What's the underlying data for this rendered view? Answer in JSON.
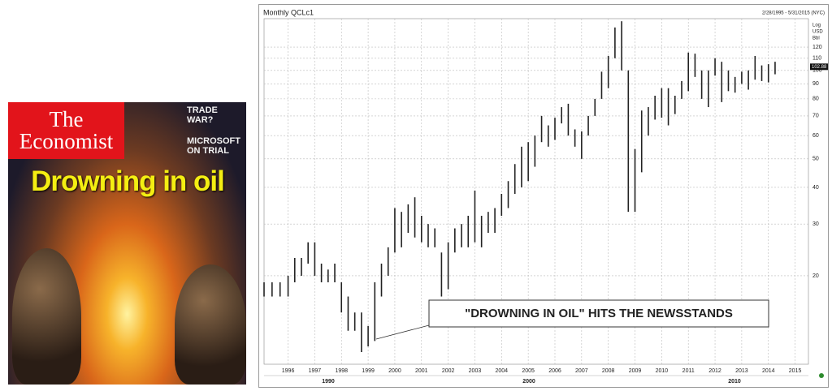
{
  "cover": {
    "masthead": [
      "The",
      "Economist"
    ],
    "side_text": [
      "TRADE WAR?",
      "MICROSOFT ON TRIAL"
    ],
    "headline": "Drowning in oil"
  },
  "chart_data": {
    "type": "range",
    "title": "Monthly QCLc1",
    "subtitle": "2/28/1995 - 5/31/2015 (NYC)",
    "y_axis_label": [
      "Log",
      "USD",
      "Bbl"
    ],
    "annotation": "\"DROWNING IN OIL\" HITS THE NEWSSTANDS",
    "era_labels": [
      "1990",
      "2000",
      "2010"
    ],
    "last_value": 102.88,
    "log_y": true,
    "grid": true,
    "color": "#222222",
    "xlim": [
      1995.1,
      2015.5
    ],
    "xticks": [
      1996,
      1997,
      1998,
      1999,
      2000,
      2001,
      2002,
      2003,
      2004,
      2005,
      2006,
      2007,
      2008,
      2009,
      2010,
      2011,
      2012,
      2013,
      2014,
      2015
    ],
    "ylim": [
      10,
      150
    ],
    "yticks": [
      20,
      30,
      40,
      50,
      60,
      70,
      80,
      90,
      100,
      110,
      120
    ],
    "x": [
      1995.1,
      1995.4,
      1995.7,
      1996.0,
      1996.25,
      1996.5,
      1996.75,
      1997.0,
      1997.25,
      1997.5,
      1997.75,
      1998.0,
      1998.25,
      1998.5,
      1998.75,
      1999.0,
      1999.25,
      1999.5,
      1999.75,
      2000.0,
      2000.25,
      2000.5,
      2000.75,
      2001.0,
      2001.25,
      2001.5,
      2001.75,
      2002.0,
      2002.25,
      2002.5,
      2002.75,
      2003.0,
      2003.25,
      2003.5,
      2003.75,
      2004.0,
      2004.25,
      2004.5,
      2004.75,
      2005.0,
      2005.25,
      2005.5,
      2005.75,
      2006.0,
      2006.25,
      2006.5,
      2006.75,
      2007.0,
      2007.25,
      2007.5,
      2007.75,
      2008.0,
      2008.25,
      2008.5,
      2008.75,
      2009.0,
      2009.25,
      2009.5,
      2009.75,
      2010.0,
      2010.25,
      2010.5,
      2010.75,
      2011.0,
      2011.25,
      2011.5,
      2011.75,
      2012.0,
      2012.25,
      2012.5,
      2012.75,
      2013.0,
      2013.25,
      2013.5,
      2013.75,
      2014.0,
      2014.25
    ],
    "low": [
      17,
      17,
      17,
      17,
      19,
      20,
      22,
      20,
      19,
      19,
      19,
      15,
      13,
      13,
      11,
      11.5,
      12,
      17,
      20,
      24,
      25,
      28,
      27,
      26,
      25,
      25,
      17,
      18,
      24,
      25,
      25,
      26,
      25,
      28,
      28,
      32,
      34,
      38,
      40,
      42,
      47,
      57,
      55,
      58,
      66,
      60,
      55,
      50,
      60,
      70,
      80,
      87,
      110,
      100,
      33,
      33,
      45,
      60,
      68,
      69,
      65,
      71,
      80,
      85,
      95,
      80,
      75,
      96,
      78,
      85,
      84,
      90,
      86,
      93,
      92,
      91,
      97
    ],
    "high": [
      19,
      19,
      19,
      20,
      23,
      23,
      26,
      26,
      22,
      21,
      22,
      19,
      17,
      15,
      15,
      13.5,
      19,
      22,
      25,
      34,
      33,
      35,
      37,
      32,
      30,
      29,
      24,
      26,
      29,
      30,
      32,
      39,
      32,
      33,
      34,
      38,
      42,
      48,
      55,
      57,
      60,
      70,
      65,
      69,
      75,
      77,
      63,
      62,
      70,
      80,
      99,
      112,
      140,
      147,
      100,
      54,
      73,
      75,
      82,
      87,
      87,
      82,
      92,
      115,
      114,
      100,
      100,
      110,
      107,
      100,
      95,
      99,
      100,
      112,
      104,
      105,
      107
    ]
  }
}
